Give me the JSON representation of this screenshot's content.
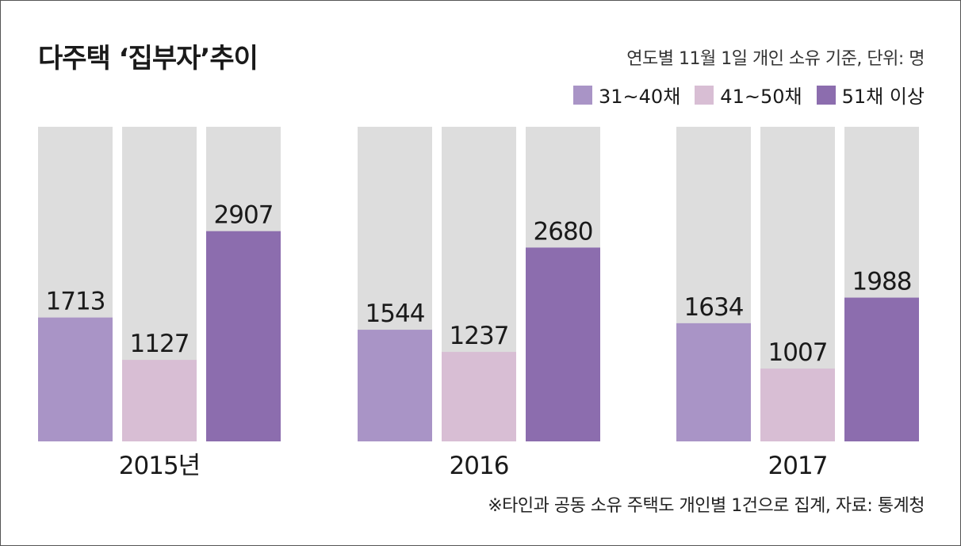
{
  "colors": {
    "track": "#dddddd",
    "series": [
      "#a994c6",
      "#d8bed4",
      "#8c6dae"
    ]
  },
  "chart_data": {
    "type": "bar",
    "title": "다주택 ‘집부자’추이",
    "subtitle": "연도별 11월 1일  개인 소유 기준, 단위: 명",
    "note": "※타인과 공동 소유 주택도 개인별 1건으로 집계, 자료: 통계청",
    "categories": [
      "2015년",
      "2016",
      "2017"
    ],
    "series": [
      {
        "name": "31~40채",
        "values": [
          1713,
          1544,
          1634
        ]
      },
      {
        "name": "41~50채",
        "values": [
          1127,
          1237,
          1007
        ]
      },
      {
        "name": "51채 이상",
        "values": [
          2907,
          2680,
          1988
        ]
      }
    ],
    "ylim": [
      0,
      4350
    ],
    "legend_position": "top-right",
    "grid": false
  }
}
